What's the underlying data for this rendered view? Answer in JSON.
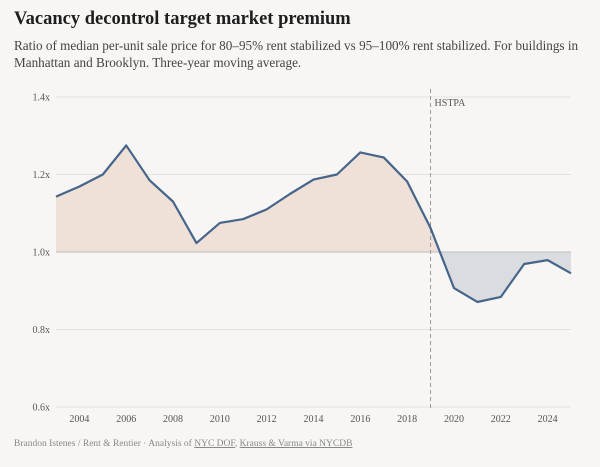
{
  "chart_data": {
    "type": "area",
    "title": "Vacancy decontrol target market premium",
    "subtitle": "Ratio of median per-unit sale price for 80–95% rent stabilized vs 95–100% rent stabilized. For buildings in Manhattan and Brooklyn. Three-year moving average.",
    "x": [
      2003,
      2004,
      2005,
      2006,
      2007,
      2008,
      2009,
      2010,
      2011,
      2012,
      2013,
      2014,
      2015,
      2016,
      2017,
      2018,
      2019,
      2020,
      2021,
      2022,
      2023,
      2024,
      2025
    ],
    "series": [
      {
        "values": [
          1.143,
          1.169,
          1.2,
          1.275,
          1.185,
          1.13,
          1.023,
          1.075,
          1.085,
          1.11,
          1.15,
          1.187,
          1.2,
          1.257,
          1.244,
          1.182,
          1.062,
          0.907,
          0.871,
          0.884,
          0.969,
          0.979,
          0.945
        ]
      }
    ],
    "baseline": 1.0,
    "ylim": [
      0.6,
      1.4
    ],
    "xlim": [
      2003,
      2025
    ],
    "yticks": [
      0.6,
      0.8,
      1.0,
      1.2,
      1.4
    ],
    "ytick_labels": [
      "0.6x",
      "0.8x",
      "1.0x",
      "1.2x",
      "1.4x"
    ],
    "xticks": [
      2004,
      2006,
      2008,
      2010,
      2012,
      2014,
      2016,
      2018,
      2020,
      2022,
      2024
    ],
    "grid": true,
    "annotations": [
      {
        "x": 2019,
        "label": "HSTPA"
      }
    ],
    "colors": {
      "line": "#46658a",
      "above_fill": "#efe1d8",
      "below_fill": "#dadcdf",
      "grid": "#e4e2df"
    }
  },
  "footer": {
    "prefix": "Brandon Istenes / Rent & Rentier · Analysis of ",
    "link1": "NYC DOF",
    "sep": ", ",
    "link2": "Krauss & Varma via NYCDB"
  }
}
